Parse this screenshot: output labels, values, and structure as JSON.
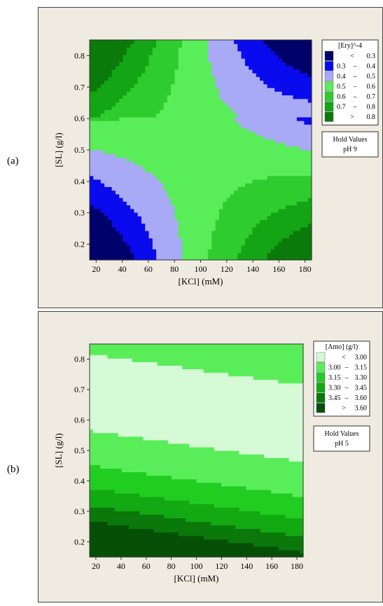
{
  "panel_labels": [
    "(a)",
    "(b)"
  ],
  "chart_data": [
    {
      "type": "heatmap",
      "subtype": "contour",
      "xlabel": "[KCl] (mM)",
      "ylabel": "[SL] (g/l)",
      "xlim": [
        15,
        185
      ],
      "ylim": [
        0.15,
        0.85
      ],
      "xticks": [
        20,
        40,
        60,
        80,
        100,
        120,
        140,
        160,
        180
      ],
      "yticks": [
        0.2,
        0.3,
        0.4,
        0.5,
        0.6,
        0.7,
        0.8
      ],
      "grid": false,
      "legend_position": "right",
      "legend_title": "[Ery]^-4",
      "legend": [
        {
          "low": "",
          "op": "<",
          "high": "0.3",
          "color": "#00006b"
        },
        {
          "low": "0.3",
          "op": "–",
          "high": "0.4",
          "color": "#0a0aee"
        },
        {
          "low": "0.4",
          "op": "–",
          "high": "0.5",
          "color": "#a8aaf5"
        },
        {
          "low": "0.5",
          "op": "–",
          "high": "0.6",
          "color": "#5aed5a"
        },
        {
          "low": "0.6",
          "op": "–",
          "high": "0.7",
          "color": "#2fcc2f"
        },
        {
          "low": "0.7",
          "op": "–",
          "high": "0.8",
          "color": "#14a514"
        },
        {
          "low": "",
          "op": ">",
          "high": "0.8",
          "color": "#0a7a0a"
        }
      ],
      "hold_values": {
        "title": "Hold Values",
        "text": "pH  9"
      },
      "model": {
        "kind": "saddle",
        "base": 0.55,
        "bx": -0.0018,
        "by": -0.15,
        "bxy": -0.009,
        "cx": 100,
        "cy": 0.6
      },
      "thresholds": [
        0.3,
        0.4,
        0.5,
        0.6,
        0.7,
        0.8
      ]
    },
    {
      "type": "heatmap",
      "subtype": "contour",
      "xlabel": "[KCl] (mM)",
      "ylabel": "[SL] (g/l)",
      "xlim": [
        15,
        185
      ],
      "ylim": [
        0.15,
        0.85
      ],
      "xticks": [
        20,
        40,
        60,
        80,
        100,
        120,
        140,
        160,
        180
      ],
      "yticks": [
        0.2,
        0.3,
        0.4,
        0.5,
        0.6,
        0.7,
        0.8
      ],
      "grid": false,
      "legend_position": "right",
      "legend_title": "[Amo] (g/l)",
      "legend": [
        {
          "low": "",
          "op": "<",
          "high": "3.00",
          "color": "#d6f9d6"
        },
        {
          "low": "3.00",
          "op": "–",
          "high": "3.15",
          "color": "#5aed5a"
        },
        {
          "low": "3.15",
          "op": "–",
          "high": "3.30",
          "color": "#22cd22"
        },
        {
          "low": "3.30",
          "op": "–",
          "high": "3.45",
          "color": "#12a912"
        },
        {
          "low": "3.45",
          "op": "–",
          "high": "3.60",
          "color": "#0a780a"
        },
        {
          "low": "",
          "op": ">",
          "high": "3.60",
          "color": "#064f06"
        }
      ],
      "hold_values": {
        "title": "Hold Values",
        "text": "pH  5"
      },
      "model": {
        "kind": "valley",
        "base": 2.95,
        "a": 1.2,
        "y0": 0.68,
        "slope": -0.0006,
        "bx": -0.0006
      },
      "thresholds": [
        3.0,
        3.15,
        3.3,
        3.45,
        3.6
      ]
    }
  ]
}
